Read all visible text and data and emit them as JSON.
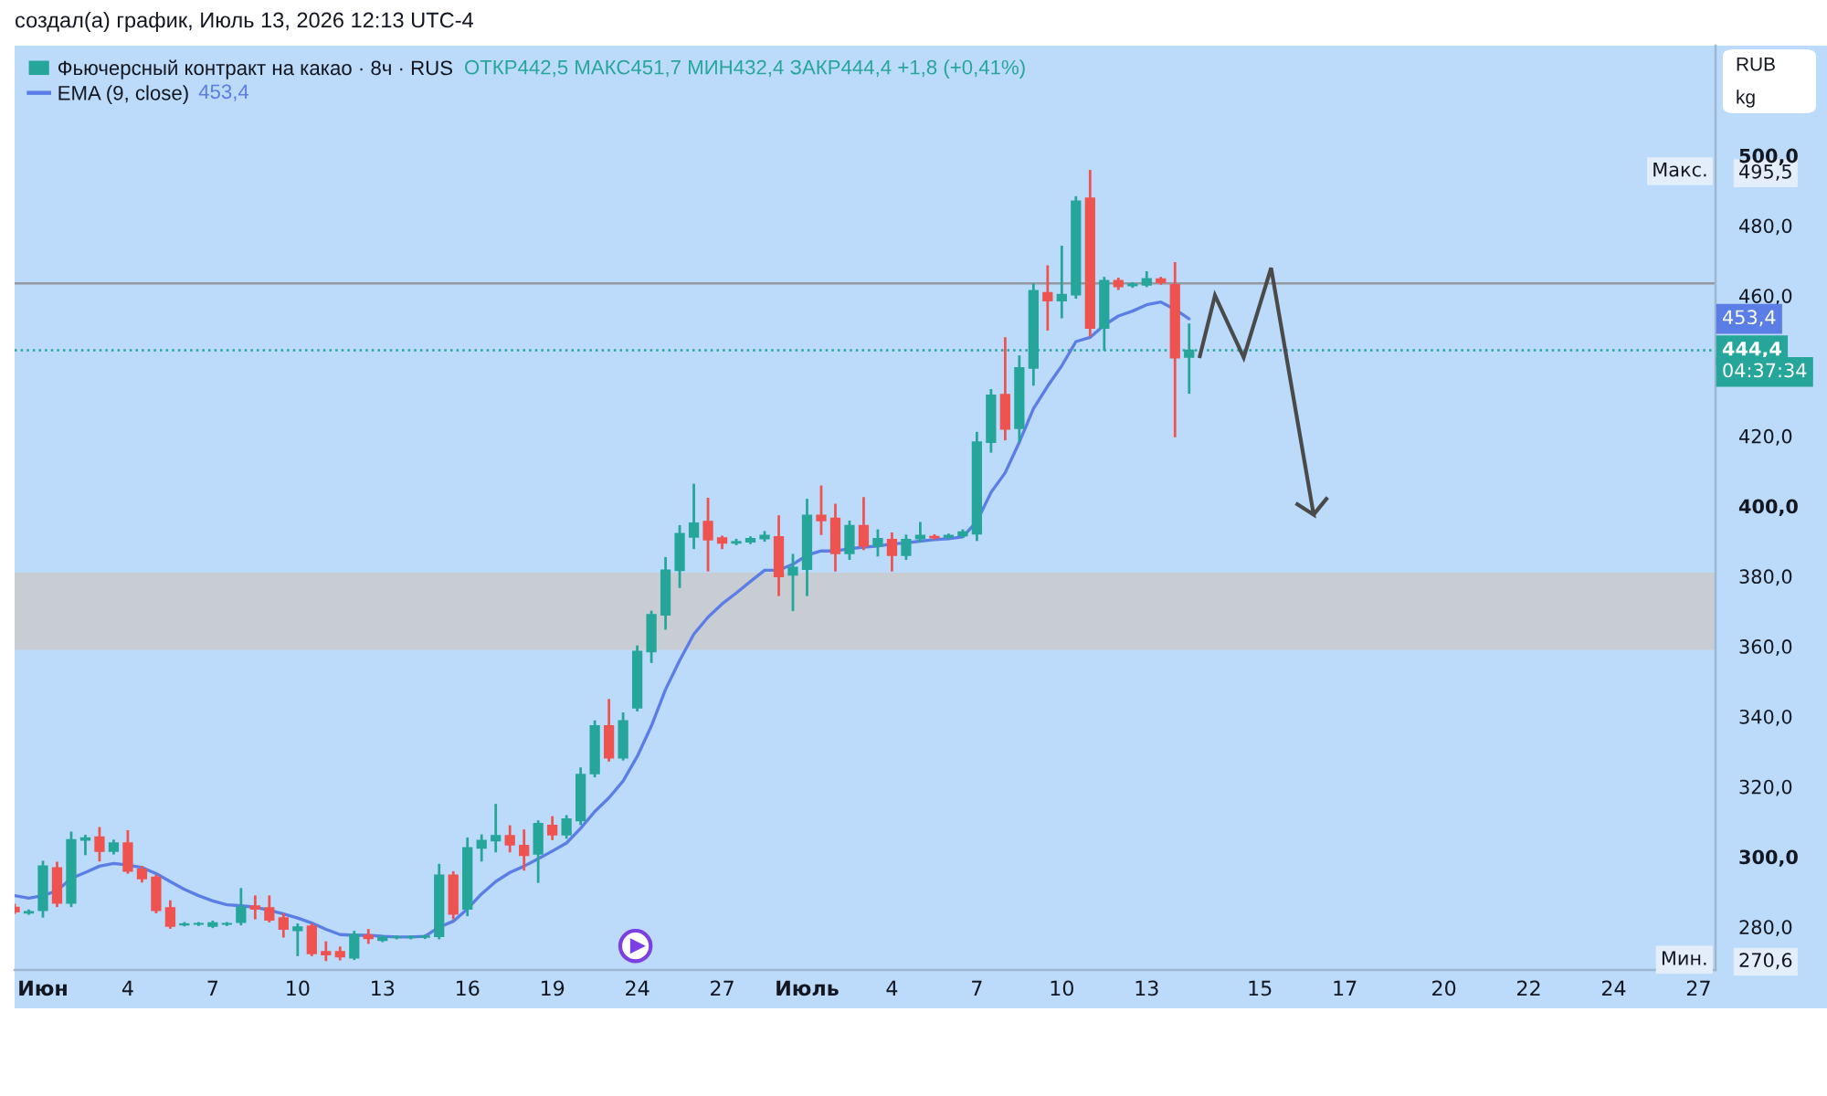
{
  "chart_data": {
    "type": "candlestick",
    "title": "создал(а) график, Июль 13, 2026 12:13 UTC-4",
    "annotations": [
      "ОТКР442,5 МАКС451,7 МИН432,4 ЗАКР444,4 +1,8 (+0,41%)",
      "453,4",
      "RUB",
      "kg",
      "04:37:34",
      {
        "text": "Макс.",
        "y": 495.5
      },
      {
        "text": "Мин.",
        "y": 270.6
      }
    ],
    "categories": [
      null,
      null,
      "Июн",
      null,
      null,
      null,
      null,
      null,
      "4",
      null,
      null,
      null,
      null,
      null,
      "7",
      null,
      null,
      null,
      null,
      null,
      "10",
      null,
      null,
      null,
      null,
      null,
      "13",
      null,
      null,
      null,
      null,
      null,
      "16",
      null,
      null,
      null,
      null,
      null,
      "19",
      null,
      null,
      null,
      null,
      null,
      "24",
      null,
      null,
      null,
      null,
      null,
      "27",
      null,
      null,
      null,
      null,
      null,
      "Июль",
      null,
      null,
      null,
      null,
      null,
      "4",
      null,
      null,
      null,
      null,
      null,
      "7",
      null,
      null,
      null,
      null,
      null,
      "10",
      null,
      null,
      null,
      null,
      null,
      "13",
      null,
      null,
      null,
      null,
      null,
      null,
      null,
      "15",
      null,
      null,
      null,
      null,
      null,
      "17",
      null,
      null,
      null,
      null,
      null,
      null,
      "20",
      null,
      null,
      null,
      null,
      null,
      "22",
      null,
      null,
      null,
      null,
      null,
      "24",
      null,
      null,
      null,
      null,
      null,
      "27",
      null
    ],
    "series": [
      {
        "name": "Фьючерсный контракт на какао · 8ч · RUS",
        "type": "candlestick",
        "ohlc": [
          [
            285.5,
            286.2,
            284.0,
            284.3
          ],
          [
            284.0,
            284.6,
            283.8,
            284.3
          ],
          [
            284.7,
            298.5,
            283.0,
            297.3
          ],
          [
            296.8,
            298.2,
            286.0,
            286.8
          ],
          [
            286.8,
            306.8,
            286.0,
            304.8
          ],
          [
            304.8,
            305.9,
            300.8,
            305.3
          ],
          [
            305.6,
            308.1,
            299.0,
            301.6
          ],
          [
            301.6,
            304.5,
            301.0,
            303.9
          ],
          [
            303.9,
            307.2,
            295.5,
            295.9
          ],
          [
            296.4,
            297.0,
            293.0,
            293.8
          ],
          [
            294.1,
            294.5,
            284.2,
            284.7
          ],
          [
            285.4,
            287.2,
            279.8,
            280.2
          ],
          [
            280.6,
            281.0,
            280.5,
            280.8
          ],
          [
            280.8,
            281.0,
            280.6,
            280.9
          ],
          [
            280.2,
            281.4,
            280.0,
            281.1
          ],
          [
            280.8,
            281.0,
            280.6,
            280.9
          ],
          [
            281.3,
            290.7,
            280.8,
            285.6
          ],
          [
            285.9,
            288.6,
            282.5,
            285.1
          ],
          [
            285.4,
            288.6,
            281.6,
            282.0
          ],
          [
            282.5,
            283.5,
            277.3,
            279.4
          ],
          [
            279.0,
            280.6,
            272.0,
            279.9
          ],
          [
            280.2,
            280.6,
            272.0,
            272.4
          ],
          [
            272.9,
            275.5,
            270.6,
            272.1
          ],
          [
            272.9,
            274.0,
            270.8,
            271.5
          ],
          [
            271.2,
            278.5,
            270.9,
            277.8
          ],
          [
            277.6,
            279.0,
            275.5,
            276.7
          ],
          [
            276.2,
            277.3,
            276.0,
            277.0
          ],
          [
            277.0,
            277.2,
            276.8,
            277.1
          ],
          [
            277.0,
            277.2,
            276.8,
            277.1
          ],
          [
            277.1,
            277.4,
            276.9,
            277.3
          ],
          [
            277.3,
            297.6,
            276.8,
            294.7
          ],
          [
            294.7,
            295.5,
            282.5,
            283.7
          ],
          [
            285.1,
            305.1,
            283.4,
            302.5
          ],
          [
            302.5,
            306.0,
            299.0,
            304.6
          ],
          [
            304.6,
            314.7,
            301.6,
            306.0
          ],
          [
            306.0,
            308.6,
            301.6,
            303.4
          ],
          [
            303.2,
            307.4,
            296.4,
            300.4
          ],
          [
            300.8,
            310.0,
            292.9,
            309.4
          ],
          [
            308.9,
            311.2,
            305.1,
            306.3
          ],
          [
            306.3,
            311.5,
            305.5,
            310.7
          ],
          [
            310.3,
            325.1,
            309.4,
            323.4
          ],
          [
            323.7,
            338.5,
            323.0,
            337.3
          ],
          [
            337.3,
            344.6,
            327.5,
            328.2
          ],
          [
            328.2,
            340.8,
            327.8,
            338.7
          ],
          [
            342.5,
            359.9,
            341.8,
            358.5
          ],
          [
            358.5,
            369.8,
            355.6,
            369.0
          ],
          [
            369.0,
            385.1,
            365.1,
            381.7
          ],
          [
            381.7,
            394.2,
            377.0,
            392.1
          ],
          [
            391.2,
            406.0,
            388.1,
            395.1
          ],
          [
            395.6,
            402.0,
            381.7,
            390.4
          ],
          [
            390.9,
            391.2,
            388.1,
            389.5
          ],
          [
            389.5,
            390.3,
            389.2,
            389.8
          ],
          [
            389.8,
            391.0,
            389.5,
            390.7
          ],
          [
            390.7,
            392.5,
            390.2,
            391.6
          ],
          [
            391.2,
            397.0,
            374.7,
            379.9
          ],
          [
            380.4,
            386.0,
            370.4,
            382.5
          ],
          [
            382.0,
            401.7,
            374.7,
            397.3
          ],
          [
            397.3,
            405.5,
            392.1,
            395.9
          ],
          [
            396.5,
            400.3,
            381.7,
            386.5
          ],
          [
            386.5,
            395.5,
            385.0,
            394.4
          ],
          [
            394.4,
            402.2,
            387.8,
            388.6
          ],
          [
            388.6,
            393.0,
            386.0,
            390.7
          ],
          [
            390.4,
            392.1,
            381.7,
            386.0
          ],
          [
            386.0,
            391.5,
            385.0,
            390.4
          ],
          [
            390.7,
            395.1,
            390.0,
            391.6
          ],
          [
            391.3,
            391.6,
            390.8,
            391.0
          ],
          [
            391.2,
            391.8,
            390.9,
            391.6
          ],
          [
            391.6,
            393.0,
            391.3,
            392.6
          ],
          [
            392.1,
            420.8,
            390.4,
            418.2
          ],
          [
            418.2,
            433.0,
            415.6,
            431.6
          ],
          [
            431.8,
            447.8,
            419.1,
            422.0
          ],
          [
            422.2,
            442.6,
            418.6,
            439.4
          ],
          [
            439.4,
            463.1,
            434.7,
            461.4
          ],
          [
            460.8,
            468.3,
            450.4,
            458.6
          ],
          [
            458.6,
            473.9,
            453.9,
            460.3
          ],
          [
            460.3,
            488.0,
            459.5,
            486.9
          ],
          [
            487.8,
            495.5,
            448.7,
            450.8
          ],
          [
            450.8,
            465.0,
            444.7,
            464.3
          ],
          [
            464.3,
            464.8,
            462.0,
            462.6
          ],
          [
            462.9,
            463.5,
            462.6,
            463.3
          ],
          [
            463.1,
            466.6,
            462.8,
            464.8
          ],
          [
            464.7,
            465.0,
            463.5,
            463.8
          ],
          [
            463.1,
            469.2,
            420.0,
            442.3
          ],
          [
            442.5,
            451.7,
            432.4,
            444.4
          ],
          null,
          null,
          null,
          null,
          null,
          null,
          null,
          null,
          null,
          null,
          null,
          null,
          null,
          null,
          null,
          null,
          null,
          null,
          null,
          null,
          null,
          null,
          null,
          null,
          null,
          null,
          null,
          null,
          null,
          null,
          null,
          null,
          null,
          null,
          null,
          null,
          null
        ],
        "colors": [
          "#ef5350",
          "#26a69a",
          "#26a69a",
          "#ef5350",
          "#26a69a",
          "#26a69a",
          "#ef5350",
          "#26a69a",
          "#ef5350",
          "#ef5350",
          "#ef5350",
          "#ef5350",
          "#26a69a",
          "#26a69a",
          "#26a69a",
          "#26a69a",
          "#26a69a",
          "#ef5350",
          "#ef5350",
          "#ef5350",
          "#26a69a",
          "#ef5350",
          "#ef5350",
          "#ef5350",
          "#26a69a",
          "#ef5350",
          "#26a69a",
          "#26a69a",
          "#26a69a",
          "#26a69a",
          "#26a69a",
          "#ef5350",
          "#26a69a",
          "#26a69a",
          "#26a69a",
          "#ef5350",
          "#ef5350",
          "#26a69a",
          "#ef5350",
          "#26a69a",
          "#26a69a",
          "#26a69a",
          "#ef5350",
          "#26a69a",
          "#26a69a",
          "#26a69a",
          "#26a69a",
          "#26a69a",
          "#26a69a",
          "#ef5350",
          "#ef5350",
          "#26a69a",
          "#26a69a",
          "#26a69a",
          "#ef5350",
          "#26a69a",
          "#26a69a",
          "#ef5350",
          "#ef5350",
          "#26a69a",
          "#ef5350",
          "#26a69a",
          "#ef5350",
          "#26a69a",
          "#26a69a",
          "#ef5350",
          "#26a69a",
          "#26a69a",
          "#26a69a",
          "#26a69a",
          "#ef5350",
          "#26a69a",
          "#26a69a",
          "#ef5350",
          "#26a69a",
          "#26a69a",
          "#ef5350",
          "#26a69a",
          "#ef5350",
          "#26a69a",
          "#26a69a",
          "#ef5350",
          "#ef5350",
          "#26a69a",
          null,
          null,
          null,
          null,
          null,
          null,
          null,
          null,
          null,
          null,
          null,
          null,
          null,
          null,
          null,
          null,
          null,
          null,
          null,
          null,
          null,
          null,
          null,
          null,
          null,
          null,
          null,
          null,
          null,
          null,
          null,
          null,
          null,
          null,
          null,
          null,
          null
        ]
      },
      {
        "name": "EMA (9, close)",
        "type": "line",
        "color": "#5a7ee6",
        "values": [
          288.9,
          288.2,
          288.9,
          290.3,
          293.8,
          295.5,
          297.3,
          298.1,
          297.6,
          296.9,
          295.2,
          292.9,
          290.7,
          288.9,
          287.4,
          286.3,
          286.0,
          285.6,
          284.7,
          283.7,
          282.5,
          281.1,
          279.3,
          277.8,
          277.6,
          277.6,
          277.3,
          277.1,
          277.1,
          277.3,
          279.9,
          281.6,
          285.1,
          289.4,
          292.9,
          295.5,
          297.3,
          299.4,
          301.6,
          303.9,
          308.1,
          312.9,
          316.8,
          321.6,
          328.6,
          337.3,
          347.7,
          356.0,
          363.5,
          368.3,
          372.1,
          375.2,
          378.5,
          381.7,
          381.7,
          383.4,
          386.0,
          387.2,
          387.2,
          387.8,
          388.3,
          388.6,
          389.2,
          389.5,
          390.0,
          390.4,
          390.7,
          391.2,
          395.6,
          403.9,
          409.5,
          418.2,
          427.8,
          434.2,
          440.0,
          446.9,
          448.1,
          451.6,
          454.2,
          455.6,
          457.4,
          458.2,
          456.1,
          453.4,
          null,
          null,
          null,
          null,
          null,
          null,
          null,
          null,
          null,
          null,
          null,
          null,
          null,
          null,
          null,
          null,
          null,
          null,
          null,
          null,
          null,
          null,
          null,
          null,
          null,
          null,
          null,
          null,
          null,
          null,
          null,
          null,
          null,
          null,
          null,
          null,
          null
        ]
      }
    ],
    "ylim": [
      267.7,
      531.3
    ],
    "yticks": [
      {
        "value": 270.6,
        "label": "270,6"
      },
      {
        "value": 280,
        "label": "280,0"
      },
      {
        "value": 300,
        "label": "300,0"
      },
      {
        "value": 320,
        "label": "320,0"
      },
      {
        "value": 340,
        "label": "340,0"
      },
      {
        "value": 360,
        "label": "360,0"
      },
      {
        "value": 380,
        "label": "380,0"
      },
      {
        "value": 400,
        "label": "400,0"
      },
      {
        "value": 420,
        "label": "420,0"
      },
      {
        "value": 460,
        "label": "460,0"
      },
      {
        "value": 480,
        "label": "480,0"
      },
      {
        "value": 495.5,
        "label": "495,5"
      },
      {
        "value": 500,
        "label": "500,0"
      }
    ],
    "ref_lines": [
      {
        "axis": "y",
        "value": 463.5,
        "color": "#9598a1"
      },
      {
        "axis": "y",
        "value": 444.4,
        "label": "444,4",
        "color": "#26a69a",
        "line_style": "dotted"
      }
    ],
    "bands": [
      {
        "axis": "y",
        "from": 359,
        "to": 381,
        "color": "#c8cdd4"
      }
    ],
    "legend": "top left"
  }
}
